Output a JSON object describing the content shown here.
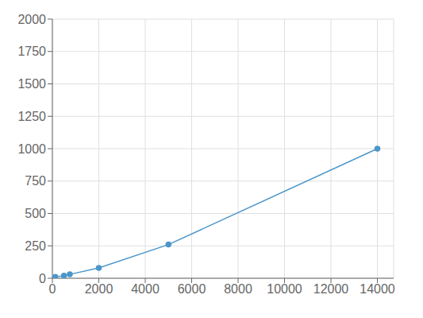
{
  "chart_data": {
    "type": "line",
    "x": [
      125,
      500,
      750,
      2000,
      5000,
      14000
    ],
    "values": [
      10,
      20,
      30,
      80,
      260,
      1000
    ],
    "color": "#4d96c9",
    "marker": "circle",
    "xlim": [
      0,
      14700
    ],
    "ylim": [
      0,
      2000
    ],
    "xticks": [
      0,
      2000,
      4000,
      6000,
      8000,
      10000,
      12000,
      14000
    ],
    "yticks": [
      0,
      250,
      500,
      750,
      1000,
      1250,
      1500,
      1750,
      2000
    ],
    "grid": true
  }
}
